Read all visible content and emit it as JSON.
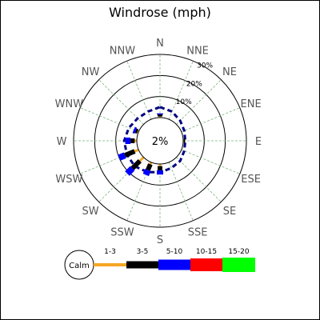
{
  "chart_data": {
    "type": "windrose",
    "title": "Windrose (mph)",
    "directions": [
      "N",
      "NNE",
      "NE",
      "ENE",
      "E",
      "ESE",
      "SE",
      "SSE",
      "S",
      "SSW",
      "SW",
      "WSW",
      "W",
      "WNW",
      "NW",
      "NNW"
    ],
    "ring_labels": [
      "10%",
      "20%",
      "30%"
    ],
    "ring_values": [
      10,
      20,
      30
    ],
    "rmax": 30,
    "center_label": "2%",
    "calm_label": "Calm",
    "bins": [
      {
        "label": "1-3",
        "color": "#f5a623"
      },
      {
        "label": "3-5",
        "color": "#000000"
      },
      {
        "label": "5-10",
        "color": "#0000ff"
      },
      {
        "label": "10-15",
        "color": "#ff0000"
      },
      {
        "label": "15-20",
        "color": "#00ff00"
      }
    ],
    "segments": [
      {
        "dir": "N",
        "values": [
          0.5,
          1.0,
          0.5,
          0,
          0
        ]
      },
      {
        "dir": "NNE",
        "values": [
          0,
          0,
          0,
          0,
          0
        ]
      },
      {
        "dir": "NE",
        "values": [
          0,
          0,
          0,
          0,
          0
        ]
      },
      {
        "dir": "ENE",
        "values": [
          0,
          0,
          0,
          0,
          0
        ]
      },
      {
        "dir": "E",
        "values": [
          0.3,
          0.6,
          0,
          0,
          0
        ]
      },
      {
        "dir": "ESE",
        "values": [
          0,
          0,
          0,
          0,
          0
        ]
      },
      {
        "dir": "SE",
        "values": [
          0,
          0,
          0,
          0,
          0
        ]
      },
      {
        "dir": "SSE",
        "values": [
          0,
          0,
          0,
          0,
          0
        ]
      },
      {
        "dir": "S",
        "values": [
          1.0,
          2.0,
          2.0,
          0,
          0
        ]
      },
      {
        "dir": "SSW",
        "values": [
          1.0,
          3.0,
          2.5,
          0,
          0
        ]
      },
      {
        "dir": "SW",
        "values": [
          2.5,
          5.0,
          3.5,
          0,
          0
        ]
      },
      {
        "dir": "WSW",
        "values": [
          2.0,
          5.0,
          3.0,
          0,
          0
        ]
      },
      {
        "dir": "W",
        "values": [
          1.0,
          2.0,
          2.5,
          0,
          0
        ]
      },
      {
        "dir": "WNW",
        "values": [
          0.5,
          1.0,
          1.0,
          0,
          0
        ]
      },
      {
        "dir": "NW",
        "values": [
          0,
          0,
          0,
          0,
          0
        ]
      },
      {
        "dir": "NNW",
        "values": [
          0,
          0,
          0,
          0,
          0
        ]
      }
    ],
    "dashed_profile": [
      {
        "dir": "N",
        "value": 5.0
      },
      {
        "dir": "NNE",
        "value": 4.0
      },
      {
        "dir": "NE",
        "value": 2.5
      },
      {
        "dir": "ENE",
        "value": 1.5
      },
      {
        "dir": "E",
        "value": 1.0
      },
      {
        "dir": "ESE",
        "value": 1.5
      },
      {
        "dir": "SE",
        "value": 2.5
      },
      {
        "dir": "SSE",
        "value": 3.0
      },
      {
        "dir": "S",
        "value": 4.0
      },
      {
        "dir": "SSW",
        "value": 5.0
      },
      {
        "dir": "SW",
        "value": 6.0
      },
      {
        "dir": "WSW",
        "value": 6.0
      },
      {
        "dir": "W",
        "value": 6.0
      },
      {
        "dir": "WNW",
        "value": 5.0
      },
      {
        "dir": "NW",
        "value": 4.0
      },
      {
        "dir": "NNW",
        "value": 4.0
      }
    ]
  }
}
